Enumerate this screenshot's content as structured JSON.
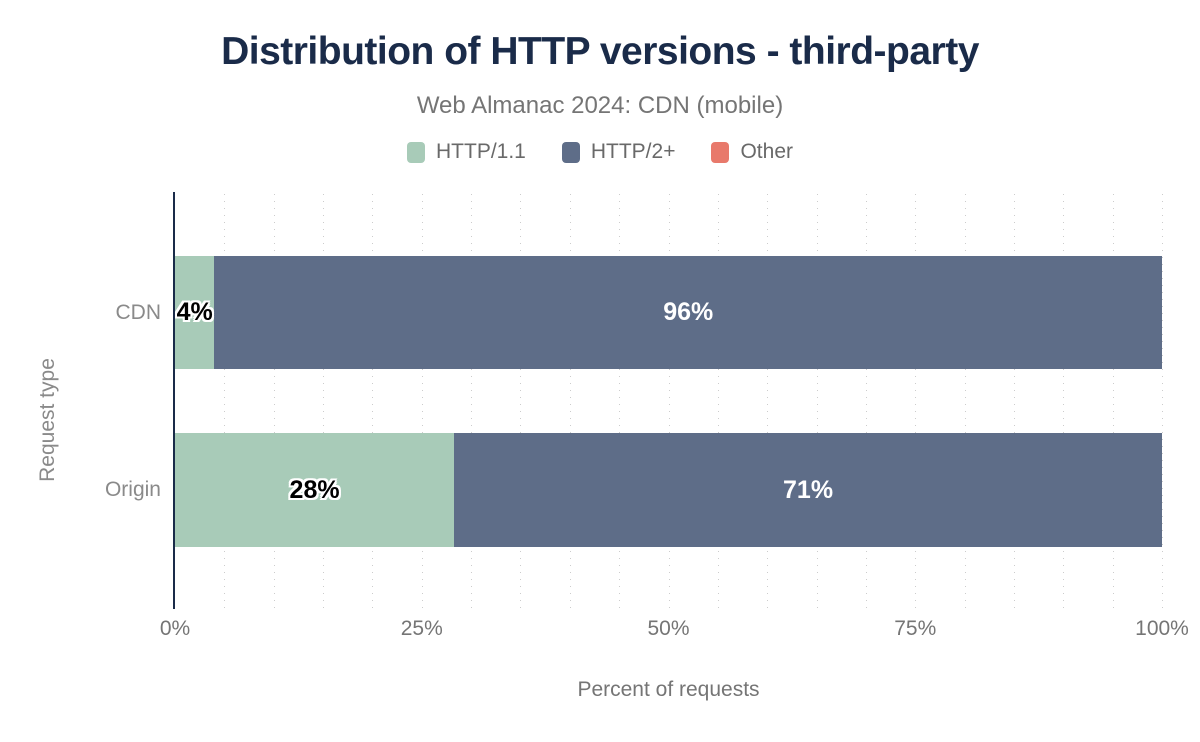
{
  "chart_data": {
    "type": "bar",
    "orientation": "horizontal",
    "stacked": true,
    "title": "Distribution of HTTP versions - third-party",
    "subtitle": "Web Almanac 2024: CDN (mobile)",
    "xlabel": "Percent of requests",
    "ylabel": "Request type",
    "xlim": [
      0,
      100
    ],
    "grid": {
      "step_percent": 5,
      "style": "dotted",
      "color": "#cccccc"
    },
    "legend_position": "top",
    "categories": [
      "CDN",
      "Origin"
    ],
    "series": [
      {
        "name": "HTTP/1.1",
        "color": "#a8cbb8",
        "text_color": "#000000",
        "halo": true,
        "values": [
          4,
          28
        ],
        "labels": [
          "4%",
          "28%"
        ]
      },
      {
        "name": "HTTP/2+",
        "color": "#5e6d88",
        "text_color": "#ffffff",
        "halo": false,
        "values": [
          96,
          71
        ],
        "labels": [
          "96%",
          "71%"
        ]
      },
      {
        "name": "Other",
        "color": "#e8796b",
        "text_color": "#ffffff",
        "halo": false,
        "values": [
          0,
          0
        ],
        "labels": [
          "",
          ""
        ]
      }
    ],
    "xticks": [
      {
        "pos": 0,
        "label": "0%"
      },
      {
        "pos": 25,
        "label": "25%"
      },
      {
        "pos": 50,
        "label": "50%"
      },
      {
        "pos": 75,
        "label": "75%"
      },
      {
        "pos": 100,
        "label": "100%"
      }
    ]
  },
  "colors": {
    "title": "#1a2b49",
    "axis_line": "#1a2b49",
    "muted_text": "#757575",
    "background": "#ffffff"
  }
}
